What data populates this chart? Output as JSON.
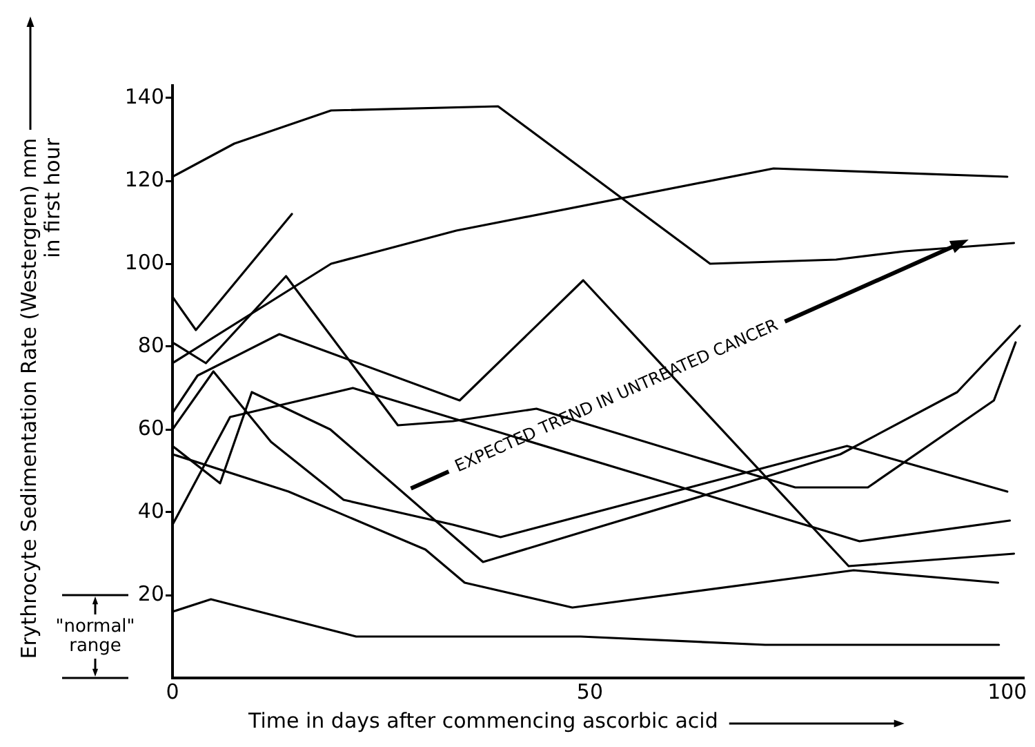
{
  "chart_data": {
    "type": "line",
    "xlabel": "Time in days after commencing ascorbic acid",
    "ylabel": "Erythrocyte Sedimentation Rate (Westergren) mm\nin first hour",
    "annotations": [
      "EXPECTED TREND IN UNTREATED CANCER",
      "\"normal\"\nrange"
    ],
    "xlim": [
      0,
      102
    ],
    "xticks": [
      0,
      50,
      100
    ],
    "ylim": [
      0,
      143
    ],
    "yticks": [
      20,
      40,
      60,
      80,
      100,
      120,
      140
    ],
    "grid": false,
    "legend": false,
    "marker": "none",
    "line_style": "solid",
    "series": [
      {
        "color": "#000000",
        "x": [
          0,
          7.4,
          19,
          39,
          64.4,
          79.5,
          87.7,
          100.8
        ],
        "values": [
          121,
          129,
          137,
          138,
          100,
          101,
          103,
          105
        ]
      },
      {
        "color": "#000000",
        "x": [
          0,
          19,
          34,
          72,
          100
        ],
        "values": [
          76,
          100,
          108,
          123,
          121
        ]
      },
      {
        "color": "#000000",
        "x": [
          0,
          2.8,
          14.3
        ],
        "values": [
          92,
          84,
          112
        ]
      },
      {
        "color": "#000000",
        "x": [
          0,
          4,
          13.6,
          27,
          33.6,
          43.6,
          74.6,
          83.3,
          98.4,
          101
        ],
        "values": [
          81,
          76,
          97,
          61,
          62,
          65,
          46,
          46,
          67,
          81
        ]
      },
      {
        "color": "#000000",
        "x": [
          0,
          3,
          12.8,
          34.4,
          49.2,
          81,
          100.8
        ],
        "values": [
          64,
          73,
          83,
          67,
          96,
          27,
          30
        ]
      },
      {
        "color": "#000000",
        "x": [
          0,
          4.9,
          11.8,
          20.5,
          33.6,
          39.3,
          80.8,
          100
        ],
        "values": [
          60,
          74,
          57,
          43,
          37,
          34,
          56,
          45
        ]
      },
      {
        "color": "#000000",
        "x": [
          0,
          6.9,
          21.6,
          82.3,
          100.3
        ],
        "values": [
          37,
          63,
          70,
          33,
          38
        ]
      },
      {
        "color": "#000000",
        "x": [
          0,
          5.7,
          9.5,
          18.9,
          37.2,
          80,
          94,
          101.5
        ],
        "values": [
          56,
          47,
          69,
          60,
          28,
          54,
          69,
          85
        ]
      },
      {
        "color": "#000000",
        "x": [
          0,
          13.9,
          30.3,
          35,
          47.9,
          81.6,
          98.9
        ],
        "values": [
          54,
          45,
          31,
          23,
          17,
          26,
          23
        ]
      },
      {
        "color": "#000000",
        "x": [
          0,
          4.6,
          22,
          48.9,
          71,
          99
        ],
        "values": [
          16,
          19,
          10,
          10,
          8,
          8
        ]
      }
    ]
  }
}
